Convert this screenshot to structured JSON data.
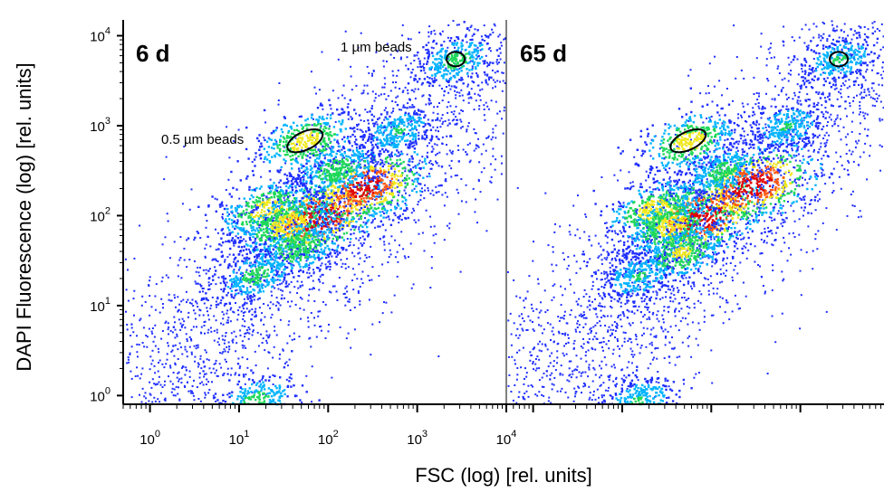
{
  "chart_data": {
    "type": "scatter",
    "subtype": "flow-cytometry density plot",
    "xlabel": "FSC (log) [rel. units]",
    "ylabel": "DAPI Fluorescence (log) [rel. units]",
    "x_scale": "log",
    "y_scale": "log",
    "xlim": [
      0.5,
      10000
    ],
    "ylim": [
      0.8,
      15000
    ],
    "x_ticks": [
      {
        "base": "10",
        "exp": "0"
      },
      {
        "base": "10",
        "exp": "1"
      },
      {
        "base": "10",
        "exp": "2"
      },
      {
        "base": "10",
        "exp": "3"
      },
      {
        "base": "10",
        "exp": "4"
      }
    ],
    "y_ticks": [
      {
        "base": "10",
        "exp": "0"
      },
      {
        "base": "10",
        "exp": "1"
      },
      {
        "base": "10",
        "exp": "2"
      },
      {
        "base": "10",
        "exp": "3"
      },
      {
        "base": "10",
        "exp": "4"
      }
    ],
    "colormap": [
      "#1f2fff",
      "#00b4ff",
      "#1fd85a",
      "#f0e81c",
      "#ff5a10",
      "#e00000"
    ],
    "panels": [
      {
        "label": "6 d",
        "annotations": [
          "1 µm beads",
          "0.5 µm beads"
        ],
        "gates": [
          {
            "name": "1 µm beads",
            "x": 2700,
            "y": 5500
          },
          {
            "name": "0.5 µm beads",
            "x": 55,
            "y": 680
          }
        ],
        "clusters": [
          {
            "x": 75,
            "y": 100,
            "peak": 1.0
          },
          {
            "x": 250,
            "y": 210,
            "peak": 0.9
          },
          {
            "x": 20,
            "y": 120,
            "peak": 0.55
          },
          {
            "x": 35,
            "y": 80,
            "peak": 0.6
          },
          {
            "x": 45,
            "y": 45,
            "peak": 0.45
          },
          {
            "x": 120,
            "y": 330,
            "peak": 0.4
          },
          {
            "x": 600,
            "y": 900,
            "peak": 0.3
          },
          {
            "x": 15,
            "y": 22,
            "peak": 0.35
          },
          {
            "x": 15,
            "y": 0.9,
            "peak": 0.35
          },
          {
            "x": 55,
            "y": 680,
            "peak": 0.55
          },
          {
            "x": 2700,
            "y": 5500,
            "peak": 0.35
          }
        ]
      },
      {
        "label": "65 d",
        "annotations": [],
        "gates": [
          {
            "name": "1 µm beads",
            "x": 2700,
            "y": 5500
          },
          {
            "name": "0.5 µm beads",
            "x": 55,
            "y": 680
          }
        ],
        "clusters": [
          {
            "x": 75,
            "y": 100,
            "peak": 1.0
          },
          {
            "x": 280,
            "y": 220,
            "peak": 0.95
          },
          {
            "x": 22,
            "y": 120,
            "peak": 0.55
          },
          {
            "x": 35,
            "y": 80,
            "peak": 0.55
          },
          {
            "x": 45,
            "y": 40,
            "peak": 0.5
          },
          {
            "x": 130,
            "y": 320,
            "peak": 0.35
          },
          {
            "x": 700,
            "y": 1000,
            "peak": 0.3
          },
          {
            "x": 15,
            "y": 22,
            "peak": 0.3
          },
          {
            "x": 15,
            "y": 0.9,
            "peak": 0.3
          },
          {
            "x": 55,
            "y": 680,
            "peak": 0.55
          },
          {
            "x": 2700,
            "y": 5500,
            "peak": 0.3
          }
        ]
      }
    ],
    "grid": false,
    "legend": "none"
  }
}
